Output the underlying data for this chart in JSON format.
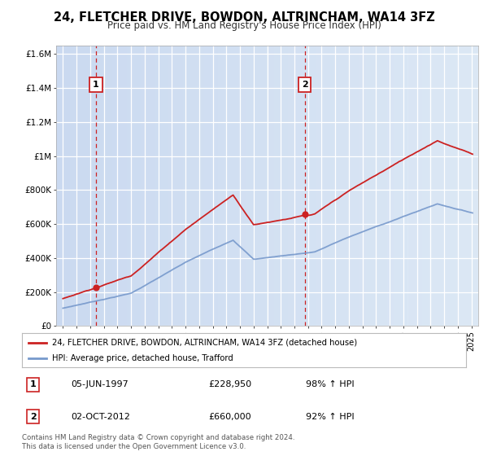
{
  "title": "24, FLETCHER DRIVE, BOWDON, ALTRINCHAM, WA14 3FZ",
  "subtitle": "Price paid vs. HM Land Registry's House Price Index (HPI)",
  "sale1_date": 1997.43,
  "sale1_price": 228950,
  "sale2_date": 2012.75,
  "sale2_price": 660000,
  "hpi_color": "#7799cc",
  "price_color": "#cc2222",
  "vline_color": "#cc2222",
  "legend_line1": "24, FLETCHER DRIVE, BOWDON, ALTRINCHAM, WA14 3FZ (detached house)",
  "legend_line2": "HPI: Average price, detached house, Trafford",
  "table_row1": [
    "1",
    "05-JUN-1997",
    "£228,950",
    "98% ↑ HPI"
  ],
  "table_row2": [
    "2",
    "02-OCT-2012",
    "£660,000",
    "92% ↑ HPI"
  ],
  "footer": "Contains HM Land Registry data © Crown copyright and database right 2024.\nThis data is licensed under the Open Government Licence v3.0.",
  "ylim_max": 1650000,
  "ylim_min": 0,
  "xlim_min": 1994.5,
  "xlim_max": 2025.5,
  "yticks": [
    0,
    200000,
    400000,
    600000,
    800000,
    1000000,
    1200000,
    1400000,
    1600000
  ],
  "ytick_labels": [
    "£0",
    "£200K",
    "£400K",
    "£600K",
    "£800K",
    "£1M",
    "£1.2M",
    "£1.4M",
    "£1.6M"
  ],
  "xticks": [
    1995,
    1996,
    1997,
    1998,
    1999,
    2000,
    2001,
    2002,
    2003,
    2004,
    2005,
    2006,
    2007,
    2008,
    2009,
    2010,
    2011,
    2012,
    2013,
    2014,
    2015,
    2016,
    2017,
    2018,
    2019,
    2020,
    2021,
    2022,
    2023,
    2024,
    2025
  ],
  "background_fig": "#ffffff"
}
